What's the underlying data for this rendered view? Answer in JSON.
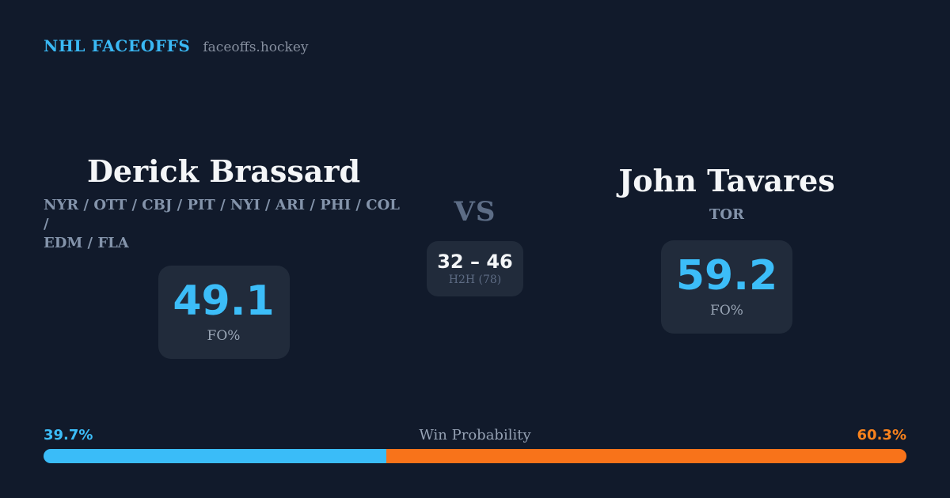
{
  "header": {
    "brand": "NHL FACEOFFS",
    "site": "faceoffs.hockey"
  },
  "player_left": {
    "name": "Derick Brassard",
    "teams": "NYR / OTT / CBJ / PIT / NYI / ARI / PHI / COL /\nEDM / FLA",
    "stat_value": "49.1",
    "stat_label": "FO%"
  },
  "center": {
    "vs_label": "VS",
    "h2h_score": "32 – 46",
    "h2h_label": "H2H (78)"
  },
  "player_right": {
    "name": "John Tavares",
    "teams": "TOR",
    "stat_value": "59.2",
    "stat_label": "FO%"
  },
  "win_probability": {
    "label": "Win Probability",
    "left_pct_label": "39.7%",
    "right_pct_label": "60.3%",
    "left_value": 39.7,
    "right_value": 60.3
  },
  "colors": {
    "background": "#111a2b",
    "card_background": "#212b3b",
    "accent_blue": "#3abcf8",
    "accent_orange": "#f8731a",
    "text_white": "#f4f6f8",
    "text_muted_slate": "#8494ab"
  }
}
